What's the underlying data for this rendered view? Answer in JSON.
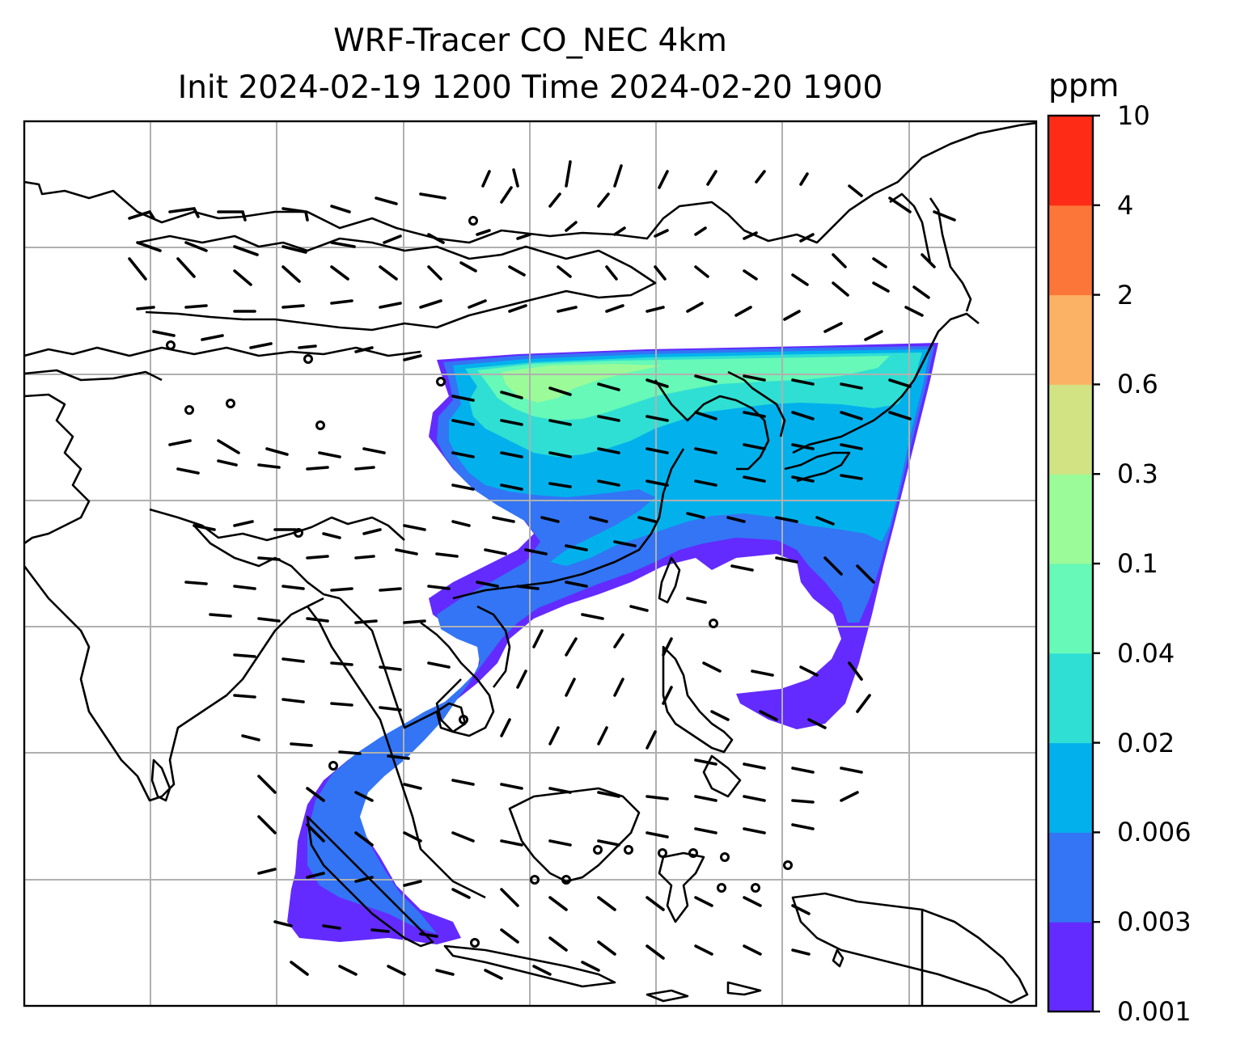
{
  "title": {
    "line1": "WRF-Tracer CO_NEC 4km",
    "line2": "Init 2024-02-19 1200 Time 2024-02-20 1900"
  },
  "colorbar": {
    "unit": "ppm",
    "levels": [
      "0.001",
      "0.003",
      "0.006",
      "0.02",
      "0.04",
      "0.1",
      "0.3",
      "0.6",
      "2",
      "4",
      "10"
    ],
    "colors": [
      "#632bff",
      "#3375f4",
      "#02b1ec",
      "#2fdfd3",
      "#66f9b7",
      "#9bfb98",
      "#d2e384",
      "#fcb265",
      "#fd7639",
      "#fe2c17"
    ]
  },
  "map": {
    "feature": "CO_NEC tracer concentration with wind barbs over East and Southeast Asia",
    "gridlines": true,
    "coastlines": true,
    "wind_barbs": true
  }
}
